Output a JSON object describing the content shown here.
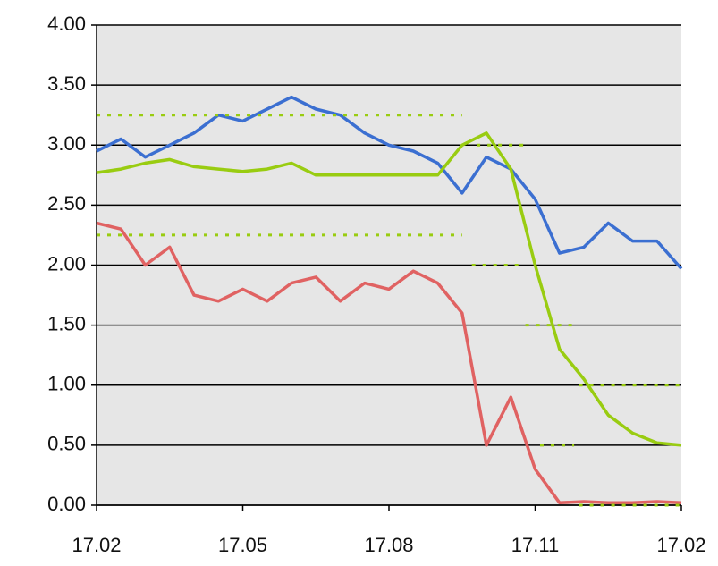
{
  "chart_data": {
    "type": "line",
    "x": [
      0,
      0.5,
      1,
      1.5,
      2,
      2.5,
      3,
      3.5,
      4,
      4.5,
      5,
      5.5,
      6,
      6.5,
      7,
      7.5,
      8,
      8.5,
      9,
      9.5,
      10,
      10.5,
      11,
      11.5,
      12
    ],
    "xlim": [
      0,
      12
    ],
    "xticks": [
      {
        "value": 0,
        "label": "17.02"
      },
      {
        "value": 3,
        "label": "17.05"
      },
      {
        "value": 6,
        "label": "17.08"
      },
      {
        "value": 9,
        "label": "17.11"
      },
      {
        "value": 12,
        "label": "17.02"
      }
    ],
    "ylim": [
      0,
      4
    ],
    "yticks": [
      {
        "value": 0,
        "label": "0.00"
      },
      {
        "value": 0.5,
        "label": "0.50"
      },
      {
        "value": 1,
        "label": "1.00"
      },
      {
        "value": 1.5,
        "label": "1.50"
      },
      {
        "value": 2,
        "label": "2.00"
      },
      {
        "value": 2.5,
        "label": "2.50"
      },
      {
        "value": 3,
        "label": "3.00"
      },
      {
        "value": 3.5,
        "label": "3.50"
      },
      {
        "value": 4,
        "label": "4.00"
      }
    ],
    "grid": true,
    "series": [
      {
        "color": "#3b6fd1",
        "values": [
          2.95,
          3.05,
          2.9,
          3.0,
          3.1,
          3.25,
          3.2,
          3.3,
          3.4,
          3.3,
          3.25,
          3.1,
          3.0,
          2.95,
          2.85,
          2.6,
          2.9,
          2.8,
          2.55,
          2.1,
          2.15,
          2.35,
          2.2,
          2.2,
          1.97
        ]
      },
      {
        "color": "#99cc11",
        "values": [
          2.77,
          2.8,
          2.85,
          2.88,
          2.82,
          2.8,
          2.78,
          2.8,
          2.85,
          2.75,
          2.75,
          2.75,
          2.75,
          2.75,
          2.75,
          3.0,
          3.1,
          2.8,
          2.0,
          1.3,
          1.05,
          0.75,
          0.6,
          0.52,
          0.5
        ]
      },
      {
        "color": "#e06262",
        "values": [
          2.35,
          2.3,
          2.0,
          2.15,
          1.75,
          1.7,
          1.8,
          1.7,
          1.85,
          1.9,
          1.7,
          1.85,
          1.8,
          1.95,
          1.85,
          1.6,
          0.5,
          0.9,
          0.3,
          0.02,
          0.03,
          0.02,
          0.02,
          0.03,
          0.02
        ]
      },
      {
        "color": "#99cc11",
        "dashed": true,
        "x": [
          0,
          7.5,
          null,
          7.8,
          8.9,
          null,
          8.8,
          9.8,
          null,
          9.9,
          12
        ],
        "values": [
          3.25,
          3.25,
          null,
          3.0,
          3.0,
          null,
          1.5,
          1.5,
          null,
          1.0,
          1.0
        ]
      },
      {
        "color": "#99cc11",
        "dashed": true,
        "x": [
          0,
          7.5,
          null,
          7.7,
          8.8,
          null,
          9.1,
          9.8,
          null,
          9.9,
          12
        ],
        "values": [
          2.25,
          2.25,
          null,
          2.0,
          2.0,
          null,
          0.5,
          0.5,
          null,
          0.0,
          0.0
        ]
      }
    ]
  }
}
